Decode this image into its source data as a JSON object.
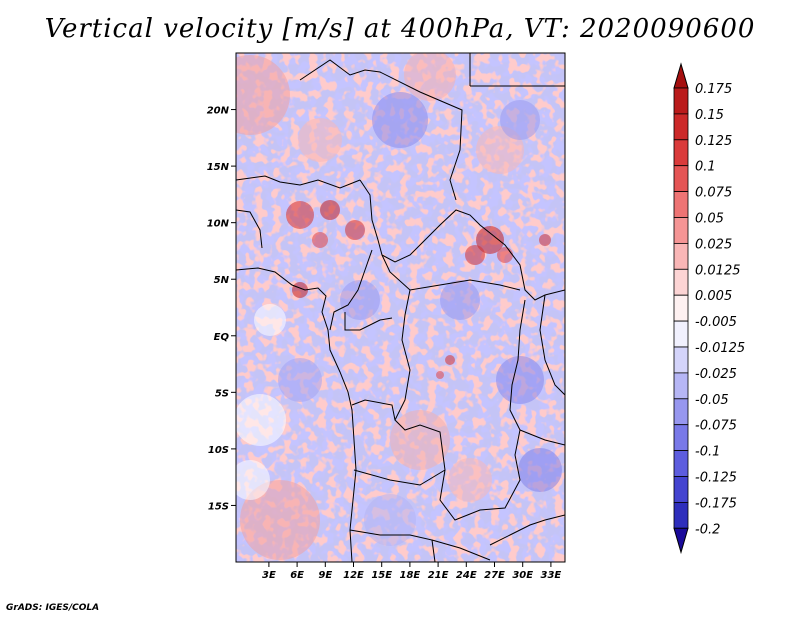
{
  "title": "Vertical velocity [m/s] at 400hPa, VT: 2020090600",
  "footer": "GrADS: IGES/COLA",
  "map": {
    "lon_range": [
      -0.5,
      34.5
    ],
    "lat_range": [
      -20,
      25
    ],
    "x_ticks": [
      {
        "label": "3E",
        "value": 3
      },
      {
        "label": "6E",
        "value": 6
      },
      {
        "label": "9E",
        "value": 9
      },
      {
        "label": "12E",
        "value": 12
      },
      {
        "label": "15E",
        "value": 15
      },
      {
        "label": "18E",
        "value": 18
      },
      {
        "label": "21E",
        "value": 21
      },
      {
        "label": "24E",
        "value": 24
      },
      {
        "label": "27E",
        "value": 27
      },
      {
        "label": "30E",
        "value": 30
      },
      {
        "label": "33E",
        "value": 33
      }
    ],
    "y_ticks": [
      {
        "label": "20N",
        "value": 20
      },
      {
        "label": "15N",
        "value": 15
      },
      {
        "label": "10N",
        "value": 10
      },
      {
        "label": "5N",
        "value": 5
      },
      {
        "label": "EQ",
        "value": 0
      },
      {
        "label": "5S",
        "value": -5
      },
      {
        "label": "10S",
        "value": -10
      },
      {
        "label": "15S",
        "value": -15
      }
    ]
  },
  "colorbar": {
    "levels": [
      {
        "label": "0.175",
        "color": "#b11515"
      },
      {
        "label": "0.15",
        "color": "#c32020"
      },
      {
        "label": "0.125",
        "color": "#d43131"
      },
      {
        "label": "0.1",
        "color": "#e04545"
      },
      {
        "label": "0.075",
        "color": "#ea6464"
      },
      {
        "label": "0.05",
        "color": "#f28484"
      },
      {
        "label": "0.025",
        "color": "#f7a6a6"
      },
      {
        "label": "0.0125",
        "color": "#fbc6c6"
      },
      {
        "label": "0.005",
        "color": "#fde2e2"
      },
      {
        "label": "-0.005",
        "color": "#ffffff"
      },
      {
        "label": "-0.0125",
        "color": "#e2e2fc"
      },
      {
        "label": "-0.025",
        "color": "#c6c6f8"
      },
      {
        "label": "-0.05",
        "color": "#a6a6f2"
      },
      {
        "label": "-0.075",
        "color": "#8888ec"
      },
      {
        "label": "-0.1",
        "color": "#6a6ae4"
      },
      {
        "label": "-0.125",
        "color": "#4f4fd8"
      },
      {
        "label": "-0.175",
        "color": "#3838c8"
      },
      {
        "label": "-0.2",
        "color": "#2424b0"
      }
    ],
    "top_arrow_color": "#a50f0f",
    "bottom_arrow_color": "#1a0a9a"
  }
}
